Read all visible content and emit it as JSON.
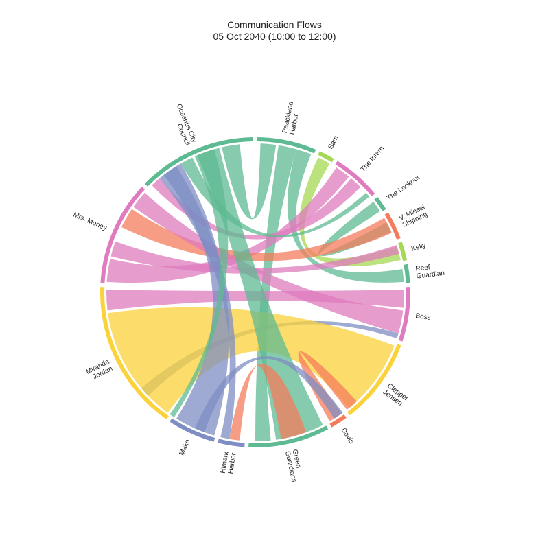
{
  "title": "Communication Flows",
  "subtitle": "05 Oct 2040 (10:00 to 12:00)",
  "chart_data": {
    "type": "chord",
    "nodes": [
      {
        "id": "pacland",
        "label": [
          "Paackland",
          "Harbor"
        ],
        "start": 0.5,
        "end": 23.0,
        "color": "#5dba92"
      },
      {
        "id": "sam",
        "label": [
          "Sam"
        ],
        "start": 24.5,
        "end": 30.5,
        "color": "#a5d853"
      },
      {
        "id": "intern",
        "label": [
          "The Intern"
        ],
        "start": 32.0,
        "end": 50.5,
        "color": "#df7bbe"
      },
      {
        "id": "lookout",
        "label": [
          "The Lookout"
        ],
        "start": 52.0,
        "end": 57.5,
        "color": "#5dba92"
      },
      {
        "id": "miesel",
        "label": [
          "V. Miesel",
          "Shipping"
        ],
        "start": 59.0,
        "end": 69.5,
        "color": "#f47c5c"
      },
      {
        "id": "kelly",
        "label": [
          "Kelly"
        ],
        "start": 71.0,
        "end": 78.0,
        "color": "#a5d853"
      },
      {
        "id": "reef",
        "label": [
          "Reef",
          "Guardian"
        ],
        "start": 79.5,
        "end": 86.5,
        "color": "#5dba92"
      },
      {
        "id": "boss",
        "label": [
          "Boss"
        ],
        "start": 88.0,
        "end": 108.5,
        "color": "#df7bbe"
      },
      {
        "id": "clepper",
        "label": [
          "Clepper",
          "Jensen"
        ],
        "start": 110.0,
        "end": 142.5,
        "color": "#fbd23a"
      },
      {
        "id": "davis",
        "label": [
          "Davis"
        ],
        "start": 144.0,
        "end": 150.5,
        "color": "#f47c5c"
      },
      {
        "id": "green",
        "label": [
          "Green",
          "Guardians"
        ],
        "start": 152.0,
        "end": 182.5,
        "color": "#5dba92"
      },
      {
        "id": "himark",
        "label": [
          "Himark",
          "Harbor"
        ],
        "start": 184.0,
        "end": 194.0,
        "color": "#7e8ec3"
      },
      {
        "id": "mako",
        "label": [
          "Mako"
        ],
        "start": 195.5,
        "end": 213.5,
        "color": "#7e8ec3"
      },
      {
        "id": "miranda",
        "label": [
          "Miranda",
          "Jordan"
        ],
        "start": 215.0,
        "end": 272.0,
        "color": "#fbd23a"
      },
      {
        "id": "money",
        "label": [
          "Mrs. Money"
        ],
        "start": 273.5,
        "end": 313.0,
        "color": "#df7bbe"
      },
      {
        "id": "occ",
        "label": [
          "Oceanus City",
          "Council"
        ],
        "start": 314.5,
        "end": 359.0,
        "color": "#5dba92"
      }
    ],
    "flows": [
      {
        "from": "pacland",
        "fa": [
          2,
          8
        ],
        "ta": [
          347,
          354
        ],
        "color": "#5dba92"
      },
      {
        "from": "pacland",
        "fa": [
          9,
          16
        ],
        "ta": [
          174,
          180
        ],
        "color": "#5dba92"
      },
      {
        "from": "pacland",
        "fa": [
          16,
          22
        ],
        "ta": [
          81,
          86
        ],
        "color": "#5dba92"
      },
      {
        "from": "sam",
        "fa": [
          25,
          30
        ],
        "ta": [
          72,
          77.5
        ],
        "color": "#a5d853"
      },
      {
        "from": "intern",
        "fa": [
          33,
          39
        ],
        "ta": [
          274,
          283
        ],
        "color": "#df7bbe"
      },
      {
        "from": "intern",
        "fa": [
          40,
          45
        ],
        "ta": [
          316,
          320
        ],
        "color": "#df7bbe"
      },
      {
        "from": "lookout",
        "fa": [
          52.5,
          57
        ],
        "ta": [
          62,
          66
        ],
        "color": "#5dba92"
      },
      {
        "from": "lookout",
        "fa": [
          48,
          50
        ],
        "ta": [
          330,
          335
        ],
        "color": "#5dba92"
      },
      {
        "from": "miesel",
        "fa": [
          60,
          66.5
        ],
        "ta": [
          296,
          304
        ],
        "color": "#f47c5c"
      },
      {
        "from": "kelly",
        "fa": [
          71.5,
          75
        ],
        "ta": [
          284,
          290
        ],
        "color": "#df7bbe"
      },
      {
        "from": "boss",
        "fa": [
          89,
          96
        ],
        "ta": [
          263,
          271
        ],
        "color": "#df7bbe"
      },
      {
        "from": "boss",
        "fa": [
          97,
          106
        ],
        "ta": [
          305,
          312
        ],
        "color": "#df7bbe"
      },
      {
        "from": "boss",
        "fa": [
          106,
          108
        ],
        "ta": [
          226,
          230
        ],
        "color": "#7e8ec3"
      },
      {
        "from": "clepper",
        "fa": [
          111,
          141
        ],
        "ta": [
          216,
          262
        ],
        "color": "#fbd23a"
      },
      {
        "from": "davis",
        "fa": [
          144.5,
          150
        ],
        "ta": [
          137,
          142
        ],
        "color": "#f47c5c"
      },
      {
        "from": "green",
        "fa": [
          153,
          172
        ],
        "ta": [
          337,
          346
        ],
        "color": "#5dba92"
      },
      {
        "from": "green",
        "fa": [
          160,
          170
        ],
        "ta": [
          186,
          190
        ],
        "color": "#f47c5c"
      },
      {
        "from": "himark",
        "fa": [
          190,
          193.5
        ],
        "ta": [
          320,
          328
        ],
        "color": "#7e8ec3"
      },
      {
        "from": "mako",
        "fa": [
          196,
          212
        ],
        "ta": [
          322,
          330
        ],
        "color": "#7e8ec3"
      },
      {
        "from": "mako",
        "fa": [
          200,
          204
        ],
        "ta": [
          144,
          148
        ],
        "color": "#7e8ec3"
      },
      {
        "from": "miranda",
        "fa": [
          213,
          215
        ],
        "ta": [
          336,
          344
        ],
        "color": "#5dba92"
      }
    ]
  }
}
